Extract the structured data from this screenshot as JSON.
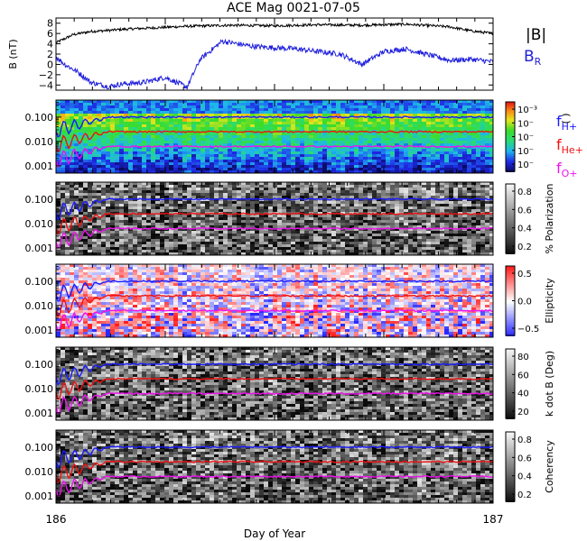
{
  "chart_data": {
    "title": "ACE Mag 0021-07-05",
    "xlabel": "Day of Year",
    "x_range": [
      186,
      187
    ],
    "x_ticks": [
      "186",
      "187"
    ],
    "colors": {
      "B_total": "#000000",
      "B_R": "#1f1fdd",
      "f_H": "#1a1aff",
      "f_He": "#ee1111",
      "f_O": "#ee11ee"
    },
    "panels": [
      {
        "type": "line",
        "ylabel": "B (nT)",
        "y_range": [
          -5,
          9
        ],
        "y_ticks": [
          "8",
          "6",
          "4",
          "2",
          "0",
          "−2",
          "−4"
        ],
        "y_tick_values": [
          8,
          6,
          4,
          2,
          0,
          -2,
          -4
        ],
        "series": [
          {
            "name": "|B|",
            "x": [
              186.0,
              186.04,
              186.08,
              186.12,
              186.15,
              186.2,
              186.3,
              186.4,
              186.5,
              186.6,
              186.7,
              186.8,
              186.9,
              186.95,
              187.0
            ],
            "y": [
              4.2,
              5.8,
              6.4,
              6.6,
              6.8,
              7.0,
              7.4,
              7.6,
              7.5,
              7.7,
              7.6,
              7.8,
              7.3,
              6.5,
              6.0
            ]
          },
          {
            "name": "B_R",
            "x": [
              186.0,
              186.02,
              186.05,
              186.08,
              186.12,
              186.15,
              186.2,
              186.25,
              186.3,
              186.33,
              186.38,
              186.45,
              186.55,
              186.65,
              186.7,
              186.75,
              186.8,
              186.9,
              186.95,
              187.0
            ],
            "y": [
              1.5,
              0.0,
              -1.5,
              -3.5,
              -4.3,
              -3.8,
              -3.5,
              -2.5,
              -4.4,
              1.0,
              4.5,
              3.5,
              3.0,
              2.0,
              0.0,
              2.5,
              3.0,
              0.8,
              1.0,
              0.5
            ]
          }
        ]
      },
      {
        "type": "heatmap",
        "colorbar_label": "( )",
        "colorbar_ticks": [
          "10⁻³",
          "10⁻",
          "10⁻",
          "10⁻",
          "10⁻"
        ],
        "palette": "rainbow"
      },
      {
        "type": "heatmap",
        "colorbar_label": "% Polarization",
        "colorbar_ticks": [
          "0.8",
          "0.6",
          "0.4",
          "0.2"
        ],
        "palette": "gray"
      },
      {
        "type": "heatmap",
        "colorbar_label": "Ellipticity",
        "colorbar_ticks": [
          "0.5",
          "0.0",
          "−0.5"
        ],
        "palette": "bluewhitered"
      },
      {
        "type": "heatmap",
        "colorbar_label": "k dot B (Deg)",
        "colorbar_ticks": [
          "80",
          "60",
          "40",
          "20"
        ],
        "palette": "gray"
      },
      {
        "type": "heatmap",
        "colorbar_label": "Coherency",
        "colorbar_ticks": [
          "0.8",
          "0.6",
          "0.4",
          "0.2"
        ],
        "palette": "gray"
      }
    ],
    "spectrogram_y_ticks": [
      "0.100",
      "0.010",
      "0.001"
    ],
    "spectrogram_y_range": [
      0.0005,
      0.5
    ],
    "spectrogram_y_scale": "log",
    "gyrofrequency_lines": [
      {
        "name": "f_H+",
        "value": 0.1
      },
      {
        "name": "f_He+",
        "value": 0.025
      },
      {
        "name": "f_O+",
        "value": 0.0062
      }
    ],
    "legend": {
      "B_total": "|B|",
      "B_R": "B",
      "B_R_sub": "R",
      "f_H": "f",
      "f_H_sub": "H+",
      "f_He": "f",
      "f_He_sub": "He+",
      "f_O": "f",
      "f_O_sub": "O+"
    }
  }
}
